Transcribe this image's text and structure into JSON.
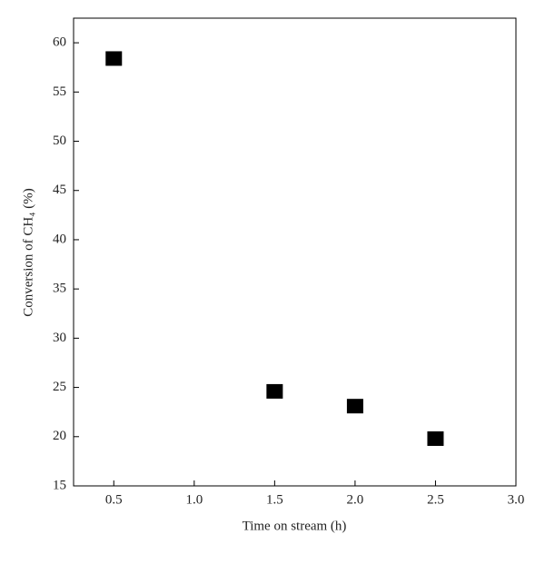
{
  "chart_data": {
    "type": "scatter",
    "x_label": "Time on stream (h)",
    "y_label": "Conversion of CH₄ (%)",
    "series": [
      {
        "color": "#000000",
        "x": [
          0.5,
          1.5,
          2.0,
          2.5
        ],
        "values": [
          58.4,
          24.6,
          23.1,
          19.8
        ]
      }
    ],
    "xlim": [
      0.25,
      3.0
    ],
    "xticks": [
      0.5,
      {
        "value": 1,
        "label": "1.0"
      },
      1.5,
      {
        "value": 2,
        "label": "2.0"
      },
      2.5,
      {
        "value": 3,
        "label": "3.0"
      }
    ],
    "ylim": [
      15,
      62.5
    ],
    "yticks": [
      15,
      20,
      25,
      30,
      35,
      40,
      45,
      50,
      55,
      60
    ]
  }
}
